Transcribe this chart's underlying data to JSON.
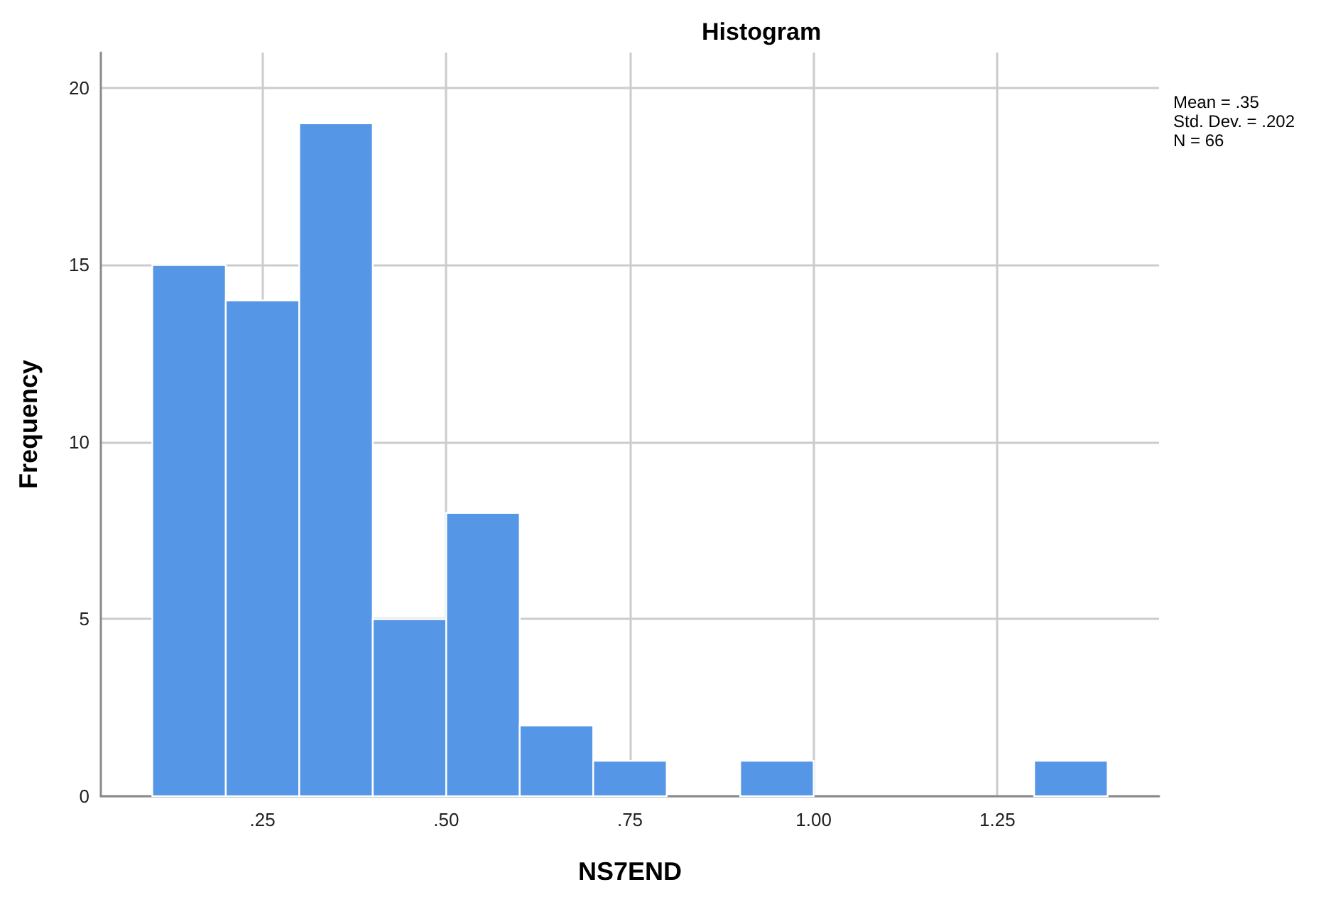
{
  "chart_data": {
    "type": "histogram",
    "title": "Histogram",
    "xlabel": "NS7END",
    "ylabel": "Frequency",
    "bins": [
      0.1,
      0.2,
      0.3,
      0.4,
      0.5,
      0.6,
      0.7,
      0.8,
      0.9,
      1.0,
      1.1,
      1.2,
      1.3,
      1.4
    ],
    "values": [
      15,
      14,
      19,
      5,
      8,
      2,
      1,
      0,
      1,
      0,
      0,
      0,
      1
    ],
    "color": "#5596e6",
    "xlim": [
      0.03,
      1.47
    ],
    "xticks": [
      {
        "value": 0.25,
        "label": ".25"
      },
      {
        "value": 0.5,
        "label": ".50"
      },
      {
        "value": 0.75,
        "label": ".75"
      },
      {
        "value": 1.0,
        "label": "1.00"
      },
      {
        "value": 1.25,
        "label": "1.25"
      }
    ],
    "ylim": [
      0,
      21
    ],
    "yticks": [
      0,
      5,
      10,
      15,
      20
    ],
    "grid": true,
    "annotations": [
      "Mean = .35",
      "Std. Dev. = .202",
      "N = 66"
    ]
  }
}
